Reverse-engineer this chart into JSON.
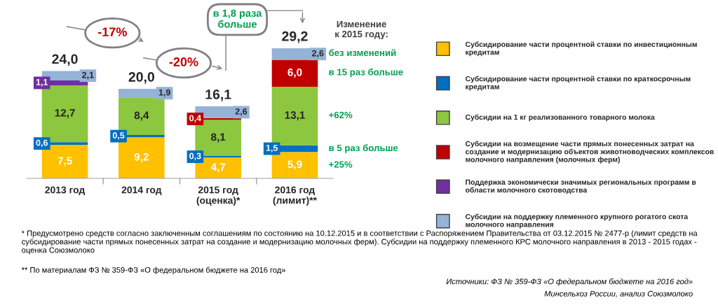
{
  "chart_data": {
    "type": "bar",
    "stacked": true,
    "categories": [
      "2013 год",
      "2014 год",
      "2015 год\n(оценка)*",
      "2016 год\n(лимит)**"
    ],
    "series": [
      {
        "name": "Субсидирование части процентной ставки по инвестиционным кредитам",
        "color": "#ffc000",
        "values": [
          7.5,
          9.2,
          4.7,
          5.9
        ],
        "value_labels": [
          "7,5",
          "9,2",
          "4,7",
          "5,9"
        ]
      },
      {
        "name": "Субсидирование части процентной ставки по краткосрочным кредитам",
        "color": "#0070c0",
        "values": [
          0.6,
          0.5,
          0.3,
          1.5
        ],
        "value_labels": [
          "0,6",
          "0,5",
          "0,3",
          "1,5"
        ]
      },
      {
        "name": "Субсидии на 1 кг реализованного товарного молока",
        "color": "#8dc63f",
        "values": [
          12.7,
          8.4,
          8.1,
          13.1
        ],
        "value_labels": [
          "12,7",
          "8,4",
          "8,1",
          "13,1"
        ]
      },
      {
        "name": "Субсидии на возмещение части прямых понесенных затрат на создание и модернизацию объектов животноводческих комплексов молочного направления (молочных ферм)",
        "color": "#c00000",
        "values": [
          null,
          null,
          0.4,
          6.0
        ],
        "value_labels": [
          null,
          null,
          "0,4",
          "6,0"
        ]
      },
      {
        "name": "Поддержка экономически значимых региональных программ в области молочного скотоводства",
        "color": "#7030a0",
        "values": [
          1.1,
          null,
          null,
          null
        ],
        "value_labels": [
          "1,1",
          null,
          null,
          null
        ]
      },
      {
        "name": "Субсидии на поддержку племенного крупного рогатого скота молочного направления",
        "color": "#95b3d7",
        "values": [
          2.1,
          1.9,
          2.6,
          2.6
        ],
        "value_labels": [
          "2,1",
          "1,9",
          "2,6",
          "2,6"
        ]
      }
    ],
    "totals": [
      "24,0",
      "20,0",
      "16,1",
      "29,2"
    ],
    "legend": "right",
    "annotations": [
      "-17%",
      "-20%",
      "в 1,8 раза больше",
      "Изменение к 2015 году:",
      "без изменений",
      "в 15 раз больше",
      "+62%",
      "в 5 раз больше",
      "+25%",
      "* Предусмотрено средств согласно заключенным соглашениям по состоянию на 10.12.2015 и в соответствии с Распоряжением Правительства от 03.12.2015 № 2477-р (лимит средств на субсидирование части прямых понесенных затрат на создание и модернизацию молочных ферм). Субсидии на поддержку племенного КРС молочного направления в 2013 - 2015 годах - оценка Союзмолоко",
      "** По материалам ФЗ № 359-ФЗ «О федеральном бюджете на 2016 год»",
      "Источники: ФЗ № 359-ФЗ «О федеральном бюджете на 2016 год»",
      "Минсельхоз России, анализ Союзмолоко"
    ]
  }
}
